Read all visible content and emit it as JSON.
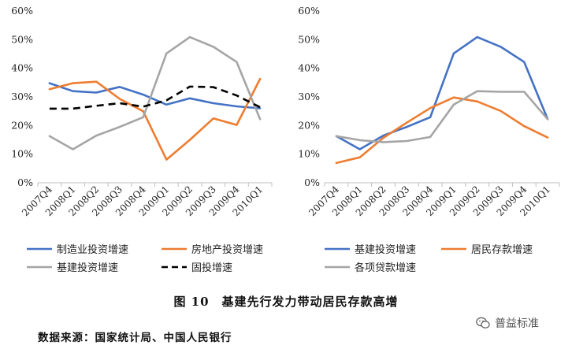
{
  "caption": "图 10　基建先行发力带动居民存款高增",
  "source": "数据来源：国家统计局、中国人民银行",
  "watermark": "普益标准",
  "watermark_icon": "wechat-icon",
  "chart_data": [
    {
      "type": "line",
      "title": "",
      "xlabel": "",
      "ylabel": "",
      "ylim": [
        0,
        60
      ],
      "yticks": [
        "0%",
        "10%",
        "20%",
        "30%",
        "40%",
        "50%",
        "60%"
      ],
      "categories": [
        "2007Q4",
        "2008Q1",
        "2008Q2",
        "2008Q3",
        "2008Q4",
        "2009Q1",
        "2009Q2",
        "2009Q3",
        "2009Q4",
        "2010Q1"
      ],
      "grid": false,
      "legend_position": "bottom",
      "series": [
        {
          "name": "制造业投资增速",
          "color": "#4472C4",
          "dash": "solid",
          "values": [
            34.8,
            32.0,
            31.5,
            33.5,
            30.8,
            27.3,
            29.5,
            27.8,
            26.7,
            26.0
          ]
        },
        {
          "name": "房地产投资增速",
          "color": "#ED7D31",
          "dash": "solid",
          "values": [
            32.7,
            34.8,
            35.3,
            29.3,
            25.0,
            8.1,
            15.0,
            22.5,
            20.2,
            36.3
          ]
        },
        {
          "name": "基建投资增速",
          "color": "#A5A5A5",
          "dash": "solid",
          "values": [
            16.3,
            11.7,
            16.5,
            19.5,
            22.9,
            45.2,
            50.9,
            47.5,
            42.2,
            22.2
          ]
        },
        {
          "name": "固投增速",
          "color": "#000000",
          "dash": "dashed",
          "values": [
            25.9,
            25.9,
            26.9,
            27.8,
            26.6,
            28.8,
            33.6,
            33.4,
            30.5,
            26.4
          ]
        }
      ]
    },
    {
      "type": "line",
      "title": "",
      "xlabel": "",
      "ylabel": "",
      "ylim": [
        0,
        60
      ],
      "yticks": [
        "0%",
        "10%",
        "20%",
        "30%",
        "40%",
        "50%",
        "60%"
      ],
      "categories": [
        "2007Q4",
        "2008Q1",
        "2008Q2",
        "2008Q3",
        "2008Q4",
        "2009Q1",
        "2009Q2",
        "2009Q3",
        "2009Q4",
        "2010Q1"
      ],
      "grid": false,
      "legend_position": "bottom",
      "series": [
        {
          "name": "基建投资增速",
          "color": "#4472C4",
          "dash": "solid",
          "values": [
            16.3,
            11.7,
            16.5,
            19.5,
            22.9,
            45.2,
            50.9,
            47.5,
            42.2,
            22.2
          ]
        },
        {
          "name": "居民存款增速",
          "color": "#ED7D31",
          "dash": "solid",
          "values": [
            6.9,
            8.9,
            15.7,
            21.0,
            26.1,
            29.8,
            28.4,
            25.1,
            19.8,
            15.8
          ]
        },
        {
          "name": "各项贷款增速",
          "color": "#A5A5A5",
          "dash": "solid",
          "values": [
            16.3,
            14.9,
            14.2,
            14.6,
            16.0,
            27.3,
            32.0,
            31.8,
            31.8,
            22.2
          ]
        }
      ]
    }
  ]
}
